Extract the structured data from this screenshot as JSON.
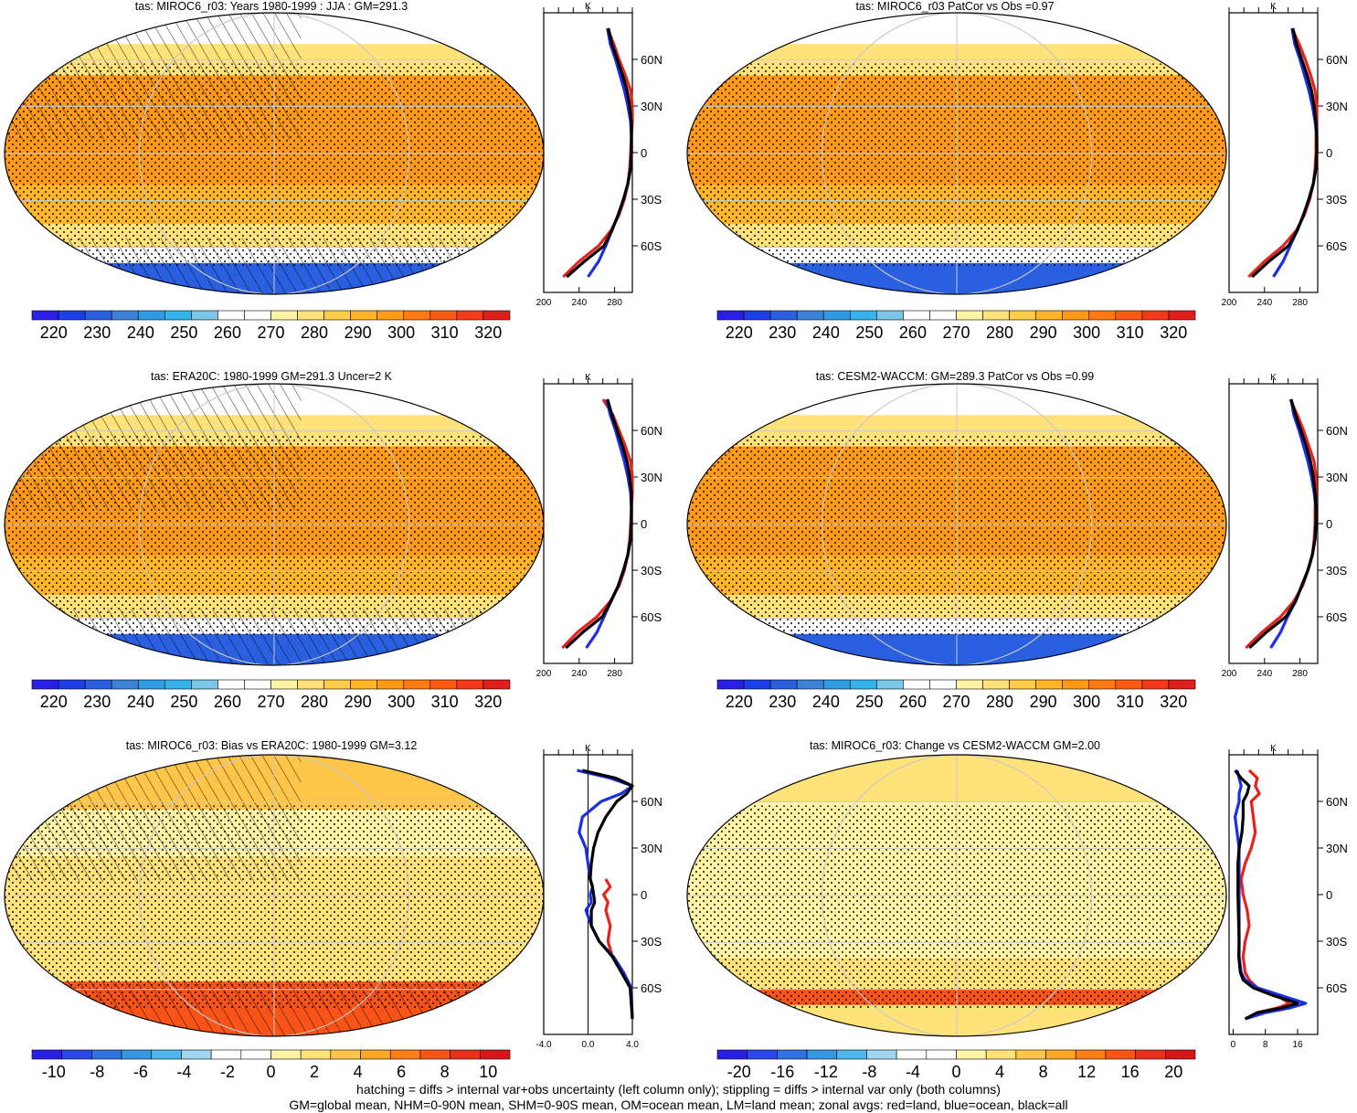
{
  "figure": {
    "footnote_1": "hatching = diffs > internal var+obs uncertainty (left column only); stippling = diffs > internal var only (both columns)",
    "footnote_2": "GM=global mean, NHM=0-90N mean, SHM=0-90S mean, OM=ocean mean, LM=land mean; zonal avgs: red=land, blue=ocean, black=all"
  },
  "colors": {
    "land_line": "#e8211c",
    "ocean_line": "#1a2ee6",
    "all_line": "#000000",
    "abs_palette": [
      "#2a1fe6",
      "#1e3ee8",
      "#2a60e0",
      "#3b82d8",
      "#2f9be4",
      "#35b4ec",
      "#7cc6e8",
      "#ffffff",
      "#ffffff",
      "#fff4a6",
      "#ffe27a",
      "#ffcc4a",
      "#ffb526",
      "#ff9a16",
      "#ff7a12",
      "#ff5a12",
      "#f43a18",
      "#e01e1a"
    ],
    "diff_palette": [
      "#2a1fe6",
      "#2a48e8",
      "#2f72e0",
      "#3596e2",
      "#4fb6ec",
      "#9fd6f0",
      "#ffffff",
      "#ffffff",
      "#fff4a6",
      "#ffe27a",
      "#ffc64a",
      "#ffa626",
      "#ff7e16",
      "#f85418",
      "#e8301a",
      "#d8161a"
    ]
  },
  "chart_data": [
    {
      "type": "heatmap",
      "title": "tas: MIROC6_r03: Years 1980-1999 : JJA : GM=291.3",
      "colorbar_ticks": [
        "220",
        "230",
        "240",
        "250",
        "260",
        "270",
        "280",
        "290",
        "300",
        "310",
        "320"
      ],
      "value_range": [
        215,
        325
      ],
      "hatching": true,
      "zonal": {
        "units": "K",
        "x_ticks": [
          "200",
          "240",
          "280"
        ],
        "xlim": [
          200,
          300
        ],
        "lat_ticks": [
          "60N",
          "30N",
          "0",
          "30S",
          "60S"
        ],
        "lat": [
          80,
          70,
          60,
          50,
          40,
          30,
          20,
          10,
          0,
          -10,
          -20,
          -30,
          -40,
          -50,
          -60,
          -70,
          -80
        ],
        "all": [
          273,
          277,
          283,
          289,
          294,
          297,
          299,
          299,
          299,
          298,
          295,
          290,
          284,
          277,
          268,
          246,
          226
        ],
        "land": [
          272,
          279,
          285,
          292,
          298,
          300,
          300,
          299,
          298,
          297,
          295,
          291,
          285,
          276,
          262,
          240,
          222
        ],
        "ocean": [
          272,
          275,
          281,
          286,
          291,
          295,
          298,
          299,
          299,
          298,
          295,
          290,
          284,
          277,
          270,
          262,
          250
        ]
      }
    },
    {
      "type": "heatmap",
      "title": "tas: MIROC6_r03 PatCor vs Obs =0.97",
      "colorbar_ticks": [
        "220",
        "230",
        "240",
        "250",
        "260",
        "270",
        "280",
        "290",
        "300",
        "310",
        "320"
      ],
      "value_range": [
        215,
        325
      ],
      "hatching": false,
      "zonal": {
        "units": "K",
        "x_ticks": [
          "200",
          "240",
          "280"
        ],
        "xlim": [
          200,
          300
        ],
        "lat_ticks": [
          "60N",
          "30N",
          "0",
          "30S",
          "60S"
        ],
        "lat": [
          80,
          70,
          60,
          50,
          40,
          30,
          20,
          10,
          0,
          -10,
          -20,
          -30,
          -40,
          -50,
          -60,
          -70,
          -80
        ],
        "all": [
          272,
          276,
          282,
          288,
          293,
          296,
          298,
          299,
          299,
          298,
          295,
          290,
          284,
          277,
          267,
          245,
          226
        ],
        "land": [
          271,
          279,
          286,
          292,
          297,
          299,
          299,
          298,
          298,
          297,
          295,
          291,
          285,
          276,
          261,
          240,
          222
        ],
        "ocean": [
          271,
          274,
          280,
          285,
          290,
          294,
          297,
          299,
          299,
          298,
          295,
          290,
          284,
          277,
          269,
          261,
          250
        ]
      }
    },
    {
      "type": "heatmap",
      "title": "tas: ERA20C: 1980-1999 GM=291.3 Uncer=2 K",
      "colorbar_ticks": [
        "220",
        "230",
        "240",
        "250",
        "260",
        "270",
        "280",
        "290",
        "300",
        "310",
        "320"
      ],
      "value_range": [
        215,
        325
      ],
      "hatching": true,
      "zonal": {
        "units": "K",
        "x_ticks": [
          "200",
          "240",
          "280"
        ],
        "xlim": [
          200,
          300
        ],
        "lat_ticks": [
          "60N",
          "30N",
          "0",
          "30S",
          "60S"
        ],
        "lat": [
          80,
          70,
          60,
          50,
          40,
          30,
          20,
          10,
          0,
          -10,
          -20,
          -30,
          -40,
          -50,
          -60,
          -70,
          -80
        ],
        "all": [
          272,
          277,
          283,
          289,
          294,
          297,
          299,
          299,
          299,
          298,
          295,
          290,
          284,
          276,
          266,
          244,
          225
        ],
        "land": [
          267,
          278,
          285,
          292,
          298,
          300,
          300,
          299,
          298,
          297,
          295,
          291,
          285,
          275,
          260,
          238,
          221
        ],
        "ocean": [
          271,
          275,
          281,
          286,
          291,
          295,
          298,
          299,
          299,
          298,
          295,
          290,
          284,
          276,
          268,
          260,
          248
        ]
      }
    },
    {
      "type": "heatmap",
      "title": "tas: CESM2-WACCM: GM=289.3 PatCor vs Obs =0.99",
      "colorbar_ticks": [
        "220",
        "230",
        "240",
        "250",
        "260",
        "270",
        "280",
        "290",
        "300",
        "310",
        "320"
      ],
      "value_range": [
        215,
        325
      ],
      "hatching": false,
      "zonal": {
        "units": "K",
        "x_ticks": [
          "200",
          "240",
          "280"
        ],
        "xlim": [
          200,
          300
        ],
        "lat_ticks": [
          "60N",
          "30N",
          "0",
          "30S",
          "60S"
        ],
        "lat": [
          80,
          70,
          60,
          50,
          40,
          30,
          20,
          10,
          0,
          -10,
          -20,
          -30,
          -40,
          -50,
          -60,
          -70,
          -80
        ],
        "all": [
          270,
          275,
          281,
          287,
          292,
          295,
          297,
          298,
          298,
          297,
          294,
          289,
          282,
          275,
          264,
          242,
          223
        ],
        "land": [
          269,
          277,
          284,
          290,
          296,
          298,
          298,
          297,
          297,
          296,
          294,
          289,
          283,
          273,
          258,
          237,
          219
        ],
        "ocean": [
          270,
          273,
          279,
          284,
          289,
          293,
          296,
          298,
          298,
          297,
          294,
          289,
          282,
          275,
          266,
          258,
          247
        ]
      }
    },
    {
      "type": "heatmap",
      "title": "tas: MIROC6_r03: Bias vs ERA20C: 1980-1999 GM=3.12",
      "colorbar_ticks": [
        "-10",
        "-8",
        "-6",
        "-4",
        "-2",
        "0",
        "2",
        "4",
        "6",
        "8",
        "10"
      ],
      "value_range": [
        -11,
        11
      ],
      "hatching": true,
      "zonal": {
        "units": "K",
        "x_ticks": [
          "-4.0",
          "0.0",
          "4.0"
        ],
        "xlim": [
          -4,
          4
        ],
        "zero_line": true,
        "lat_ticks": [
          "60N",
          "30N",
          "0",
          "30S",
          "60S"
        ],
        "lat": [
          80,
          75,
          70,
          65,
          60,
          50,
          40,
          30,
          20,
          10,
          5,
          0,
          -5,
          -10,
          -20,
          -30,
          -40,
          -50,
          -60,
          -80
        ],
        "all": [
          -0.5,
          2.5,
          4.0,
          3.5,
          2.6,
          1.6,
          0.9,
          0.5,
          0.3,
          0.2,
          0.4,
          0.5,
          0.6,
          0.3,
          0.3,
          1.0,
          2.2,
          3.0,
          3.8,
          4.0
        ],
        "land": [
          null,
          null,
          null,
          null,
          null,
          null,
          null,
          null,
          null,
          1.6,
          2.0,
          1.4,
          1.8,
          1.6,
          2.0,
          1.8,
          2.2,
          null,
          null,
          null
        ],
        "ocean": [
          -1.0,
          2.0,
          4.0,
          3.0,
          1.2,
          -0.5,
          -0.8,
          -0.2,
          0.0,
          0.2,
          0.4,
          0.2,
          0.3,
          -0.2,
          0.3,
          1.0,
          2.3,
          3.2,
          3.9,
          4.0
        ]
      }
    },
    {
      "type": "heatmap",
      "title": "tas: MIROC6_r03: Change vs CESM2-WACCM GM=2.00",
      "colorbar_ticks": [
        "-20",
        "-16",
        "-12",
        "-8",
        "-4",
        "0",
        "4",
        "8",
        "12",
        "16",
        "20"
      ],
      "value_range": [
        -22,
        22
      ],
      "hatching": false,
      "zonal": {
        "units": "K",
        "x_ticks": [
          "0",
          "8",
          "16"
        ],
        "xlim": [
          -1,
          21
        ],
        "lat_ticks": [
          "60N",
          "30N",
          "0",
          "30S",
          "60S"
        ],
        "lat": [
          80,
          75,
          70,
          65,
          60,
          50,
          40,
          30,
          20,
          10,
          0,
          -10,
          -20,
          -30,
          -40,
          -50,
          -55,
          -60,
          -65,
          -70,
          -73,
          -76,
          -80
        ],
        "all": [
          0.5,
          2.0,
          4.0,
          3.5,
          2.5,
          2.5,
          2.2,
          1.5,
          1.2,
          1.2,
          1.2,
          1.3,
          1.4,
          1.5,
          1.4,
          1.8,
          2.5,
          5.0,
          10.0,
          16.0,
          12.0,
          6.0,
          3.0
        ],
        "land": [
          4.0,
          6.0,
          5.5,
          6.5,
          4.5,
          5.0,
          5.5,
          4.5,
          3.0,
          2.0,
          2.5,
          3.5,
          4.0,
          3.0,
          2.5,
          3.0,
          4.0,
          6.0,
          11.0,
          14.0,
          11.0,
          6.0,
          3.0
        ],
        "ocean": [
          1.0,
          1.5,
          2.0,
          1.5,
          1.5,
          0.5,
          1.0,
          1.5,
          1.5,
          1.5,
          1.5,
          1.5,
          1.5,
          1.5,
          1.5,
          2.0,
          3.0,
          6.0,
          12.0,
          18.0,
          14.0,
          8.0,
          3.0
        ]
      }
    }
  ]
}
